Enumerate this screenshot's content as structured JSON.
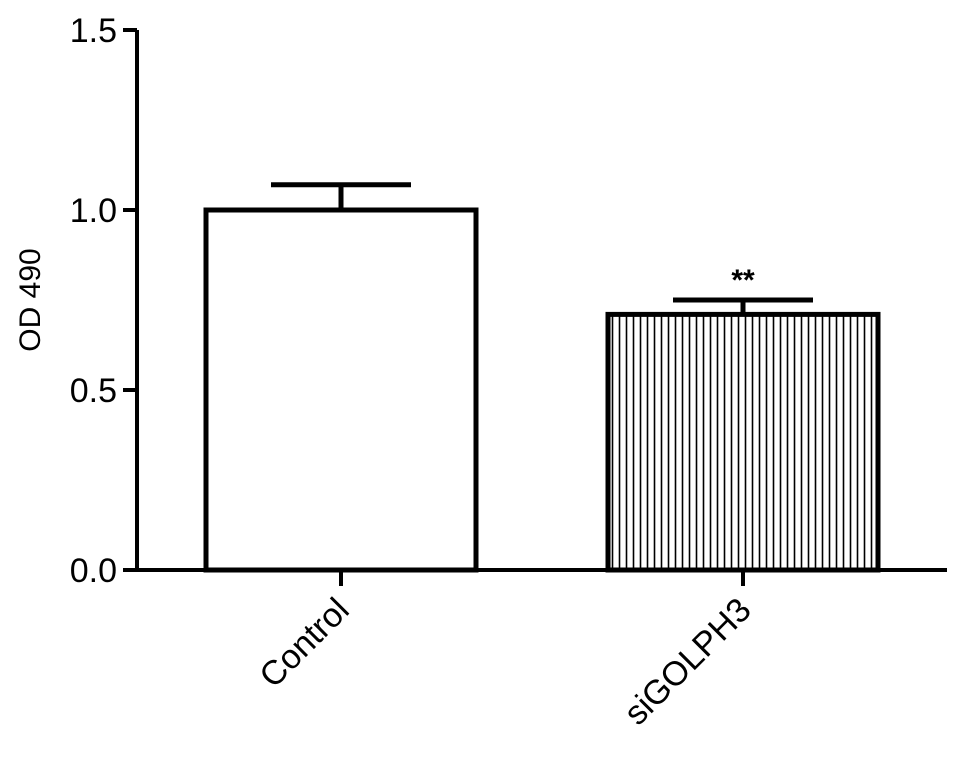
{
  "chart_data": {
    "type": "bar",
    "title": "",
    "xlabel": "",
    "ylabel": "OD 490",
    "ylim": [
      0,
      1.5
    ],
    "yticks": [
      "0.0",
      "0.5",
      "1.0",
      "1.5"
    ],
    "grid": false,
    "categories": [
      "Control",
      "siGOLPH3"
    ],
    "values": [
      1.0,
      0.71
    ],
    "errors": [
      0.07,
      0.04
    ],
    "annotations": [
      "",
      "**"
    ],
    "fills": [
      "none",
      "vertical-hatch"
    ],
    "colors": {
      "stroke": "#000000",
      "fill": "#ffffff"
    }
  }
}
